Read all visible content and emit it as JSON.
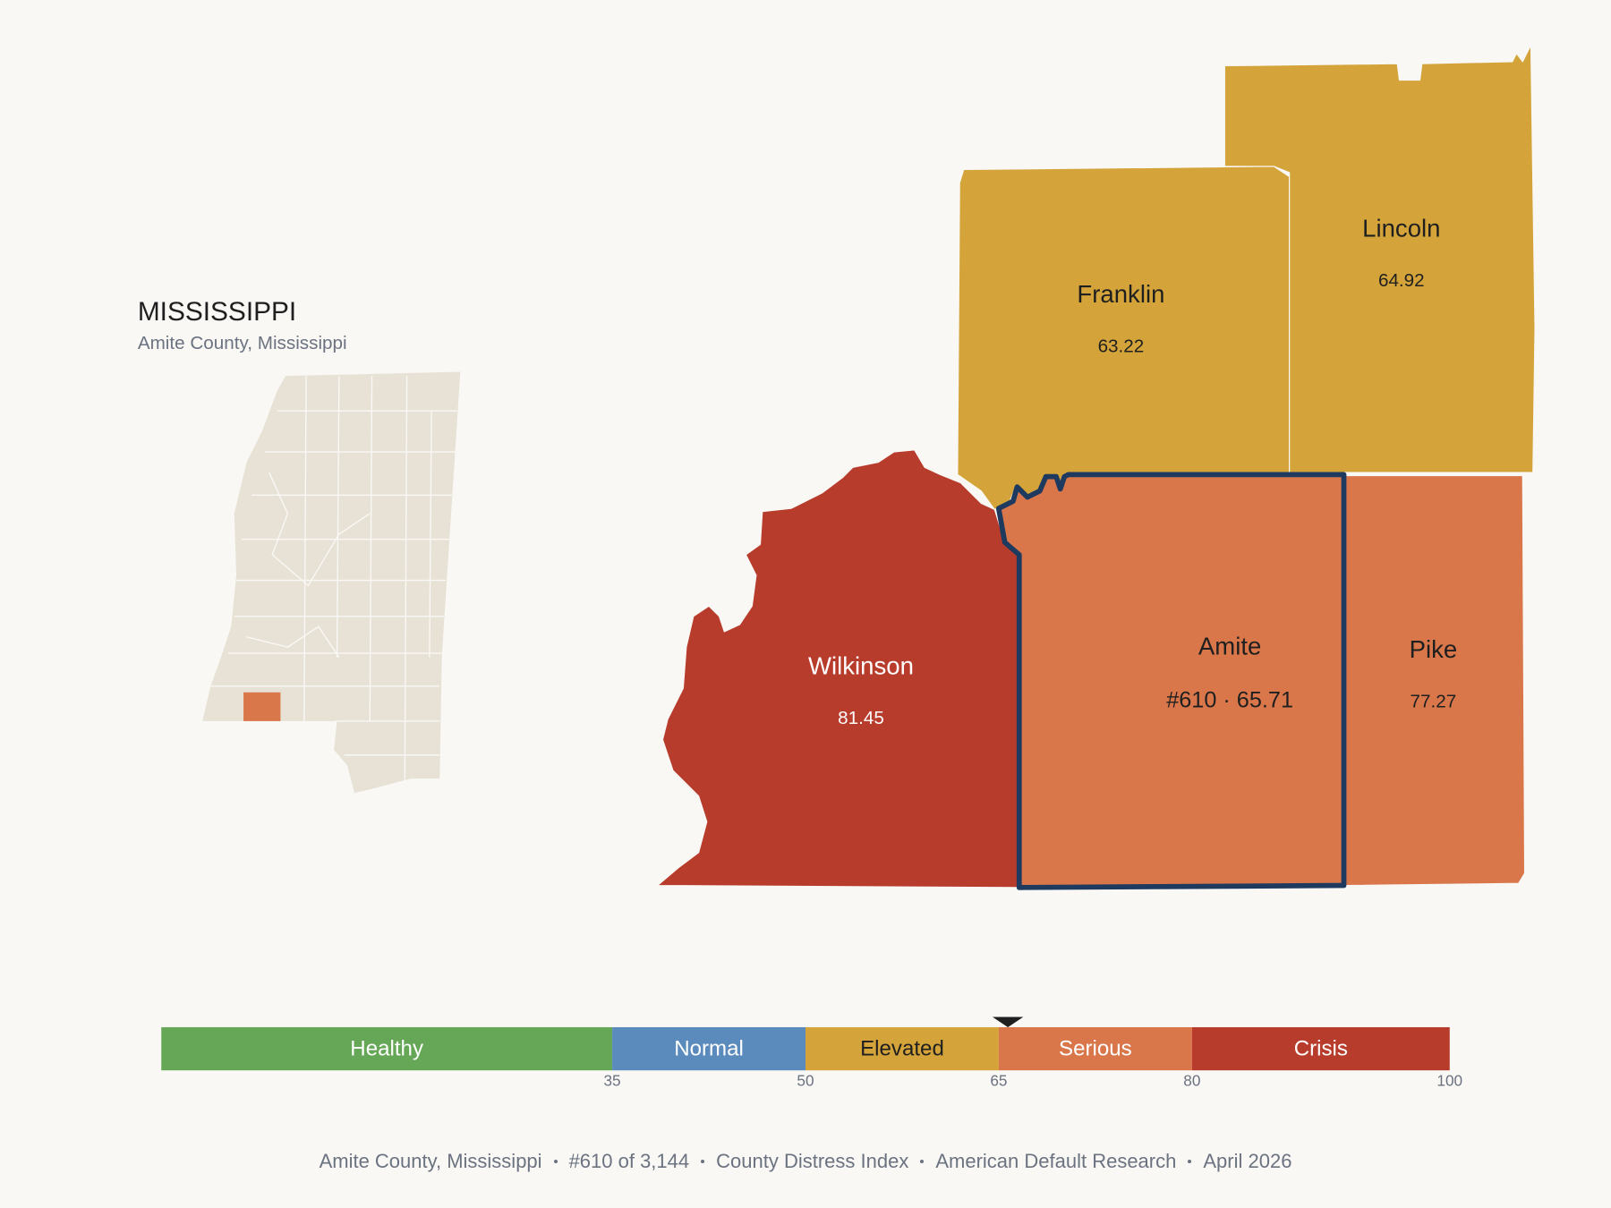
{
  "header": {
    "title": "MISSISSIPPI",
    "subtitle": "Amite County, Mississippi"
  },
  "counties": [
    {
      "name": "Franklin",
      "value": 63.22,
      "color": "#d4a43a"
    },
    {
      "name": "Lincoln",
      "value": 64.92,
      "color": "#d4a43a"
    },
    {
      "name": "Wilkinson",
      "value": 81.45,
      "color": "#b83c2c"
    },
    {
      "name": "Pike",
      "value": 77.27,
      "color": "#d9774b"
    },
    {
      "name": "Amite",
      "value": 65.71,
      "value_label": "#610 · 65.71",
      "color": "#d9774b",
      "selected": true
    }
  ],
  "legend": {
    "xlim": [
      0,
      100
    ],
    "xticks": [
      35,
      50,
      65,
      80,
      100
    ],
    "bands": [
      {
        "name": "Healthy",
        "color": "#66a757"
      },
      {
        "name": "Normal",
        "color": "#5b8bbd"
      },
      {
        "name": "Elevated",
        "color": "#d4a43a"
      },
      {
        "name": "Serious",
        "color": "#d9774b"
      },
      {
        "name": "Crisis",
        "color": "#b83c2c"
      }
    ]
  },
  "footer": [
    "Amite County, Mississippi",
    "#610 of 3,144",
    "County Distress Index",
    "American Default Research",
    "April 2026"
  ]
}
